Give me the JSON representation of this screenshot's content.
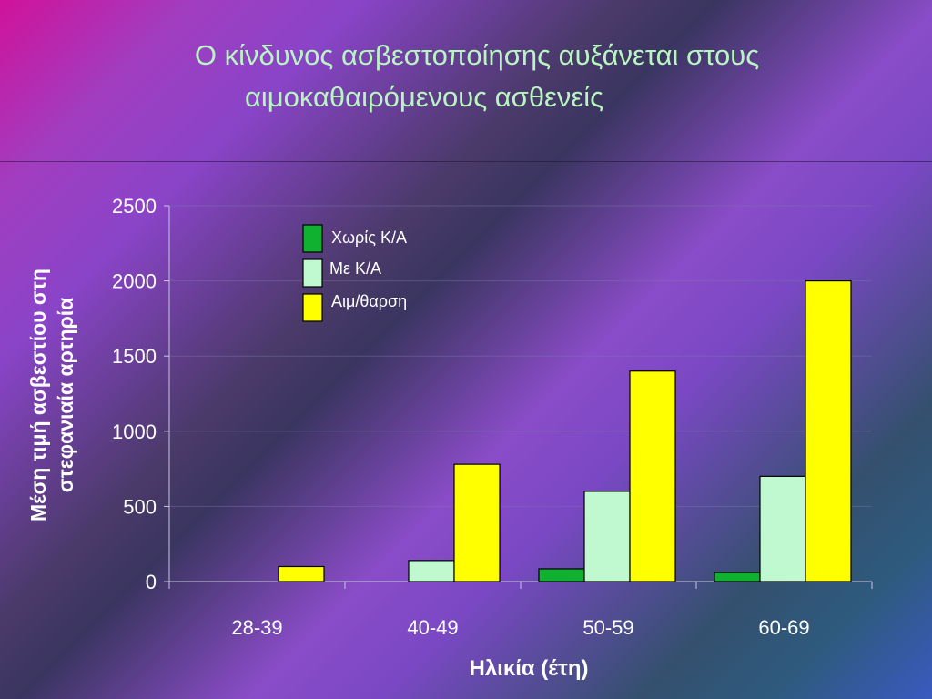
{
  "slide": {
    "title_line1": "Ο κίνδυνος ασβεστοποίησης αυξάνεται στους",
    "title_line2": "αιμοκαθαιρόμενους ασθενείς"
  },
  "colors": {
    "title": "#b8f5c0",
    "series": [
      "#10b030",
      "#c0f8d0",
      "#ffff00"
    ]
  },
  "chart_data": {
    "type": "bar",
    "title": "",
    "xlabel": "Ηλικία (έτη)",
    "ylabel_lines": [
      "Μέση τιμή ασβεστίου στη",
      "στεφανιαία αρτηρία"
    ],
    "categories": [
      "28-39",
      "40-49",
      "50-59",
      "60-69"
    ],
    "ylim": [
      0,
      2500
    ],
    "yticks": [
      0,
      500,
      1000,
      1500,
      2000,
      2500
    ],
    "grid": true,
    "legend_position": "top-left inside plot",
    "series": [
      {
        "name": "Χωρίς Κ/Α",
        "values": [
          0,
          0,
          85,
          60
        ]
      },
      {
        "name": "Με Κ/Α",
        "values": [
          0,
          140,
          600,
          700
        ]
      },
      {
        "name": "Αιμ/θαρση",
        "values": [
          100,
          780,
          1400,
          2000
        ]
      }
    ]
  }
}
